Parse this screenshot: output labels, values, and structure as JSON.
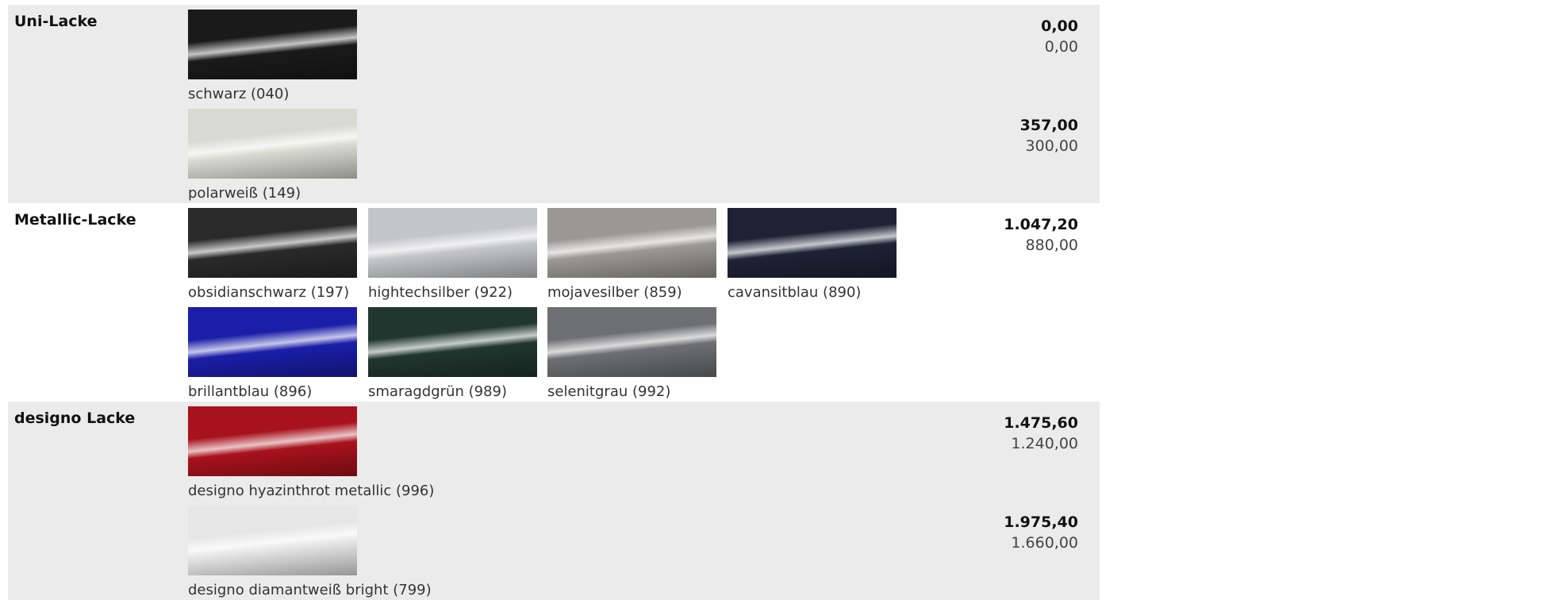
{
  "groups": [
    {
      "title": "Uni-Lacke",
      "rows": [
        {
          "swatches": [
            {
              "label": "schwarz (040)",
              "color": "#1a1a1a"
            }
          ],
          "price_gross": "0,00",
          "price_net": "0,00"
        },
        {
          "swatches": [
            {
              "label": "polarweiß (149)",
              "color": "#d8dad2"
            }
          ],
          "price_gross": "357,00",
          "price_net": "300,00"
        }
      ]
    },
    {
      "title": "Metallic-Lacke",
      "rows": [
        {
          "swatches": [
            {
              "label": "obsidianschwarz (197)",
              "color": "#2a2a2a"
            },
            {
              "label": "hightechsilber (922)",
              "color": "#c4c5c9"
            },
            {
              "label": "mojavesilber (859)",
              "color": "#9a9896"
            },
            {
              "label": "cavansitblau (890)",
              "color": "#1e2235"
            }
          ],
          "price_gross": "1.047,20",
          "price_net": "880,00"
        },
        {
          "swatches": [
            {
              "label": "brillantblau (896)",
              "color": "#1a1ea8"
            },
            {
              "label": "smaragdgrün (989)",
              "color": "#20362e"
            },
            {
              "label": "selenitgrau (992)",
              "color": "#6e6f72"
            }
          ]
        }
      ]
    },
    {
      "title": "designo Lacke",
      "rows": [
        {
          "swatches": [
            {
              "label": "designo hyazinthrot metallic (996)",
              "color": "#a8121c"
            }
          ],
          "price_gross": "1.475,60",
          "price_net": "1.240,00"
        },
        {
          "swatches": [
            {
              "label": "designo diamantweiß bright (799)",
              "color": "#e6e6e6"
            }
          ],
          "price_gross": "1.975,40",
          "price_net": "1.660,00"
        }
      ]
    }
  ]
}
